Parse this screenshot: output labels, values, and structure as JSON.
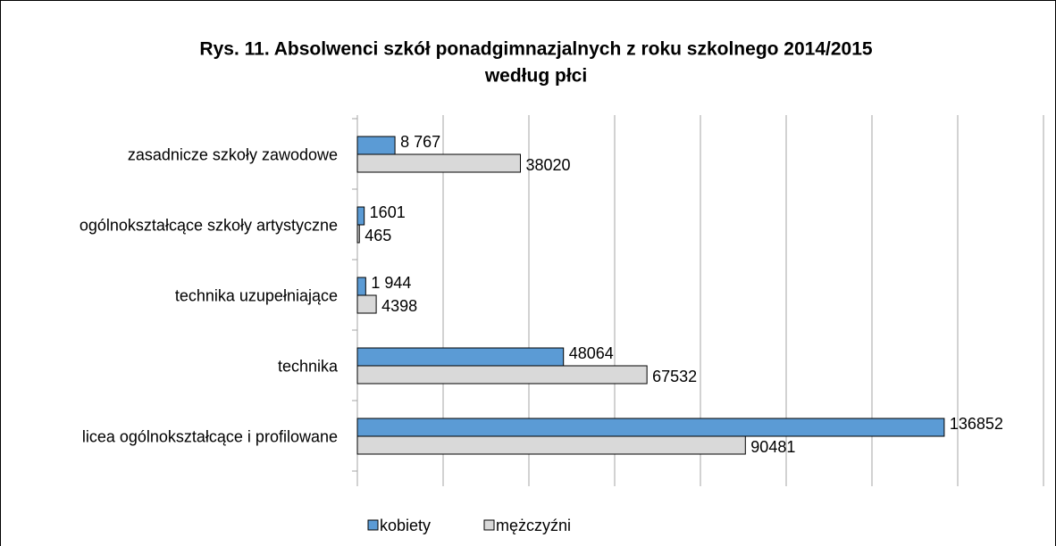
{
  "chart_data": {
    "type": "hbar",
    "title": [
      "Rys. 11. Absolwenci szkół ponadgimnazjalnych z roku szkolnego 2014/2015",
      "według płci"
    ],
    "categories": [
      "zasadnicze szkoły zawodowe",
      "ogólnokształcące szkoły artystyczne",
      "technika uzupełniające",
      "technika",
      "licea ogólnokształcące i profilowane"
    ],
    "series": [
      {
        "name": "kobiety",
        "color": "#5b9bd5",
        "values": [
          8767,
          1601,
          1944,
          48064,
          136852
        ],
        "value_labels": [
          "8 767",
          "1601",
          "1 944",
          "48064",
          "136852"
        ]
      },
      {
        "name": "mężczyźni",
        "color": "#d9d9d9",
        "values": [
          38020,
          465,
          4398,
          67532,
          90481
        ]
      }
    ],
    "xlim": [
      0,
      160000
    ],
    "xticks": [
      0,
      20000,
      40000,
      60000,
      80000,
      100000,
      120000,
      140000,
      160000
    ],
    "grid": true,
    "legend": "bottom"
  }
}
